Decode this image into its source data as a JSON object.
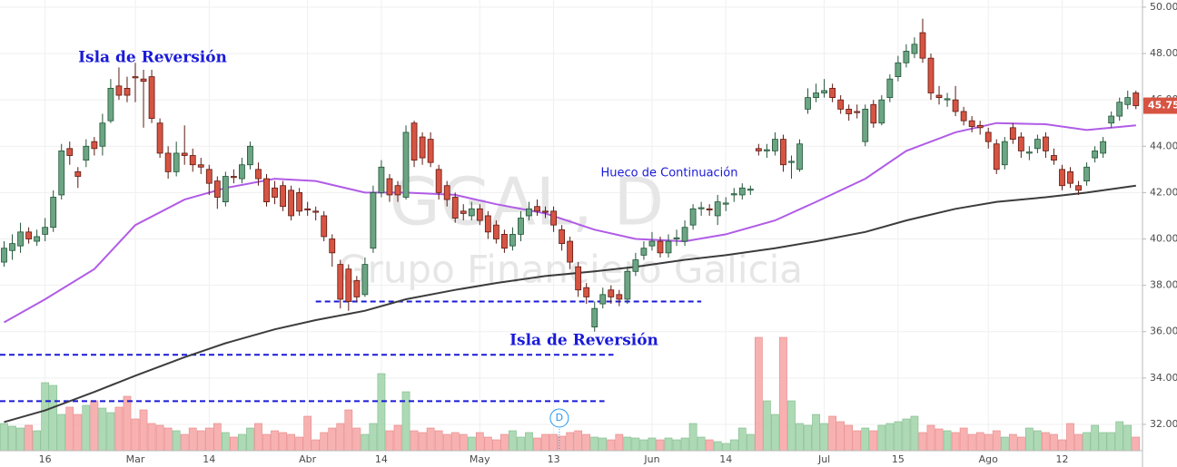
{
  "chart_data": {
    "type": "candlestick",
    "watermark": [
      "GGAL, D",
      "Grupo Financiero Galicia"
    ],
    "annotations": [
      "Isla de Reversión",
      "Isla de Reversión",
      "Hueco de Continuación"
    ],
    "event_label": "D",
    "ylim": [
      30.16,
      50.31
    ],
    "yticks": [
      {
        "value": 32,
        "label": "32.00"
      },
      {
        "value": 34,
        "label": "34.00"
      },
      {
        "value": 36,
        "label": "36.00"
      },
      {
        "value": 38,
        "label": "38.00"
      },
      {
        "value": 40,
        "label": "40.00"
      },
      {
        "value": 42,
        "label": "42.00"
      },
      {
        "value": 44,
        "label": "44.00"
      },
      {
        "value": 46,
        "label": "46.00"
      },
      {
        "value": 48,
        "label": "48.00"
      },
      {
        "value": 50,
        "label": "50.00"
      }
    ],
    "xlim": [
      -0.5,
      138.8
    ],
    "xticks": [
      {
        "value": 5,
        "label": "16"
      },
      {
        "value": 16,
        "label": "Mar"
      },
      {
        "value": 25,
        "label": "14"
      },
      {
        "value": 37,
        "label": "Abr"
      },
      {
        "value": 46,
        "label": "14"
      },
      {
        "value": 58,
        "label": "May"
      },
      {
        "value": 67,
        "label": "13"
      },
      {
        "value": 79,
        "label": "Jun"
      },
      {
        "value": 88,
        "label": "14"
      },
      {
        "value": 100,
        "label": "Jul"
      },
      {
        "value": 109,
        "label": "15"
      },
      {
        "value": 120,
        "label": "Ago"
      },
      {
        "value": 129,
        "label": "12"
      }
    ],
    "grid": true,
    "up_color": "#6ba583",
    "down_color": "#d75442",
    "level_color": "#1a1ad8",
    "levels": [
      37.3,
      35.0,
      33.0
    ],
    "open": [
      39.0,
      39.5,
      39.7,
      40.3,
      39.9,
      40.2,
      40.5,
      41.9,
      43.9,
      42.9,
      43.4,
      44.2,
      44.0,
      45.1,
      46.6,
      46.5,
      47.0,
      46.9,
      47.0,
      45.0,
      43.7,
      42.9,
      43.7,
      43.6,
      43.2,
      43.0,
      42.5,
      41.6,
      42.7,
      42.6,
      43.2,
      43.0,
      42.6,
      42.2,
      42.3,
      42.1,
      42.0,
      41.3,
      41.2,
      41.0,
      40.0,
      38.9,
      38.7,
      38.2,
      37.6,
      39.6,
      42.0,
      42.6,
      42.3,
      41.8,
      45.0,
      44.4,
      44.3,
      43.0,
      42.3,
      41.8,
      41.2,
      41.0,
      41.3,
      41.0,
      40.6,
      40.2,
      39.7,
      40.2,
      41.0,
      41.4,
      41.2,
      41.2,
      40.4,
      39.9,
      38.8,
      37.9,
      36.2,
      37.2,
      37.8,
      37.6,
      37.4,
      38.6,
      39.3,
      39.7,
      39.9,
      39.4,
      40.0,
      39.9,
      40.6,
      41.3,
      41.3,
      41.0,
      41.5,
      41.9,
      41.9,
      42.1,
      43.9,
      43.8,
      43.8,
      44.3,
      43.3,
      43.0,
      45.6,
      46.1,
      46.3,
      46.5,
      46.0,
      45.6,
      45.5,
      44.2,
      45.8,
      45.0,
      46.1,
      47.0,
      47.6,
      48.0,
      48.9,
      47.8,
      46.2,
      46.0,
      46.0,
      45.5,
      45.1,
      44.9,
      44.6,
      44.1,
      43.2,
      44.8,
      44.4,
      43.7,
      43.9,
      44.4,
      43.6,
      43.0,
      42.9,
      42.3,
      42.5,
      43.5,
      43.7,
      45.0,
      45.3,
      45.8,
      46.3
    ],
    "high": [
      39.9,
      40.2,
      40.7,
      40.5,
      40.4,
      40.9,
      42.1,
      44.1,
      44.2,
      43.1,
      44.3,
      44.4,
      45.4,
      46.9,
      47.4,
      47.0,
      47.6,
      47.3,
      47.3,
      45.2,
      44.0,
      44.2,
      44.9,
      43.9,
      43.5,
      43.2,
      42.7,
      42.9,
      43.0,
      43.5,
      44.2,
      43.3,
      42.8,
      42.5,
      42.5,
      42.3,
      42.2,
      41.6,
      41.4,
      41.2,
      40.2,
      39.1,
      38.9,
      38.4,
      39.2,
      42.3,
      43.4,
      42.8,
      42.5,
      44.9,
      45.1,
      44.6,
      44.6,
      43.2,
      42.5,
      42.0,
      41.5,
      41.6,
      41.5,
      41.2,
      40.8,
      40.4,
      40.5,
      41.2,
      41.6,
      41.7,
      41.4,
      41.4,
      40.6,
      40.1,
      39.0,
      38.1,
      37.3,
      37.9,
      38.0,
      37.8,
      38.8,
      39.4,
      39.9,
      40.3,
      40.1,
      40.2,
      40.4,
      40.8,
      41.5,
      41.6,
      41.5,
      41.9,
      41.8,
      42.2,
      42.4,
      42.3,
      44.1,
      44.1,
      44.6,
      44.5,
      43.6,
      44.3,
      46.5,
      46.7,
      46.9,
      46.7,
      46.2,
      45.8,
      45.8,
      45.8,
      46.0,
      46.2,
      47.1,
      47.9,
      48.4,
      48.7,
      49.5,
      48.0,
      46.6,
      46.3,
      46.6,
      45.7,
      45.3,
      45.1,
      44.8,
      44.3,
      44.4,
      45.0,
      44.6,
      44.0,
      44.5,
      44.6,
      43.9,
      43.2,
      43.1,
      42.5,
      43.3,
      44.0,
      44.4,
      45.5,
      46.1,
      46.4,
      46.4
    ],
    "low": [
      38.8,
      39.1,
      39.4,
      39.8,
      39.7,
      39.9,
      40.3,
      41.7,
      43.2,
      42.2,
      43.1,
      43.6,
      43.6,
      45.0,
      46.0,
      45.9,
      45.9,
      44.8,
      45.0,
      43.5,
      42.6,
      42.7,
      43.2,
      42.9,
      42.8,
      41.9,
      41.3,
      41.4,
      42.4,
      42.4,
      43.0,
      42.3,
      41.4,
      41.5,
      41.2,
      40.8,
      41.0,
      41.0,
      40.8,
      39.9,
      38.8,
      37.0,
      36.9,
      37.3,
      37.5,
      39.4,
      41.8,
      41.6,
      41.6,
      41.7,
      43.1,
      43.2,
      43.1,
      41.7,
      41.4,
      40.7,
      40.8,
      40.8,
      40.6,
      40.0,
      39.8,
      39.4,
      39.5,
      39.9,
      40.8,
      41.0,
      40.9,
      40.3,
      39.5,
      38.7,
      37.5,
      37.2,
      36.0,
      37.0,
      37.2,
      37.1,
      37.2,
      38.4,
      39.1,
      39.5,
      39.2,
      39.2,
      39.7,
      39.7,
      40.4,
      41.0,
      41.0,
      40.6,
      41.2,
      41.6,
      41.7,
      41.9,
      43.6,
      43.5,
      43.6,
      42.9,
      42.6,
      42.9,
      45.4,
      45.9,
      46.1,
      45.9,
      45.4,
      45.1,
      45.2,
      44.0,
      44.8,
      44.9,
      45.9,
      46.8,
      47.4,
      47.8,
      47.6,
      46.0,
      45.8,
      45.7,
      45.3,
      44.9,
      44.6,
      44.5,
      43.9,
      42.8,
      43.0,
      44.1,
      43.5,
      43.4,
      43.7,
      43.5,
      43.2,
      42.1,
      42.2,
      41.9,
      42.3,
      43.3,
      43.5,
      44.8,
      45.1,
      45.6,
      45.6
    ],
    "close": [
      39.6,
      39.8,
      40.3,
      40.0,
      40.1,
      40.5,
      41.8,
      43.8,
      43.6,
      42.7,
      44.0,
      43.9,
      45.0,
      46.5,
      46.2,
      46.2,
      46.95,
      46.8,
      45.2,
      43.7,
      42.9,
      43.7,
      43.6,
      43.2,
      43.1,
      42.4,
      41.8,
      42.7,
      42.65,
      43.2,
      44.0,
      42.6,
      41.6,
      41.8,
      41.4,
      41.0,
      41.2,
      41.25,
      41.15,
      40.1,
      39.4,
      37.4,
      37.3,
      37.5,
      38.9,
      42.0,
      43.1,
      41.9,
      41.9,
      44.6,
      43.4,
      43.5,
      43.3,
      42.0,
      41.7,
      40.9,
      41.1,
      41.3,
      40.8,
      40.3,
      40.0,
      39.6,
      40.2,
      40.9,
      41.3,
      41.2,
      41.15,
      40.6,
      39.8,
      39.0,
      37.8,
      37.5,
      37.0,
      37.6,
      37.5,
      37.4,
      38.6,
      39.1,
      39.6,
      39.9,
      39.4,
      39.9,
      40.05,
      40.5,
      41.3,
      41.35,
      41.25,
      41.6,
      41.55,
      41.95,
      42.2,
      42.15,
      43.8,
      43.85,
      44.3,
      43.2,
      43.35,
      44.1,
      46.1,
      46.3,
      46.4,
      46.1,
      45.6,
      45.4,
      45.45,
      45.6,
      45.0,
      46.0,
      46.9,
      47.6,
      48.1,
      48.4,
      47.8,
      46.3,
      46.1,
      46.05,
      45.5,
      45.1,
      44.85,
      44.8,
      44.2,
      43.0,
      44.2,
      44.3,
      43.8,
      43.75,
      44.3,
      43.8,
      43.4,
      42.3,
      42.4,
      42.1,
      43.1,
      43.8,
      44.2,
      45.3,
      45.9,
      46.1,
      45.75
    ],
    "volume": [
      30,
      27,
      25,
      28,
      22,
      75,
      72,
      40,
      48,
      40,
      50,
      55,
      47,
      42,
      48,
      60,
      35,
      45,
      30,
      28,
      25,
      22,
      18,
      25,
      22,
      25,
      30,
      20,
      15,
      18,
      25,
      30,
      18,
      22,
      20,
      18,
      15,
      38,
      12,
      20,
      25,
      30,
      45,
      25,
      18,
      30,
      85,
      22,
      28,
      65,
      22,
      20,
      25,
      22,
      18,
      20,
      18,
      15,
      20,
      15,
      12,
      18,
      22,
      15,
      20,
      14,
      18,
      18,
      16,
      20,
      22,
      18,
      15,
      14,
      12,
      18,
      15,
      14,
      12,
      14,
      12,
      14,
      12,
      14,
      30,
      15,
      12,
      10,
      8,
      12,
      25,
      18,
      125,
      55,
      40,
      125,
      55,
      30,
      28,
      40,
      30,
      38,
      32,
      28,
      22,
      25,
      22,
      28,
      30,
      32,
      35,
      38,
      20,
      28,
      24,
      22,
      20,
      25,
      18,
      20,
      18,
      22,
      15,
      18,
      15,
      25,
      22,
      20,
      18,
      12,
      30,
      18,
      20,
      28,
      20,
      20,
      32,
      28,
      15
    ],
    "series": [
      {
        "color": "#b05ce6",
        "x": [
          0,
          5,
          11,
          16,
          22,
          27,
          33,
          38,
          44,
          49,
          55,
          60,
          66,
          72,
          77,
          83,
          88,
          94,
          99,
          105,
          110,
          116,
          121,
          127,
          132,
          138
        ],
        "values": [
          36.4,
          37.4,
          38.7,
          40.6,
          41.7,
          42.2,
          42.6,
          42.5,
          42.0,
          42.0,
          41.9,
          41.5,
          41.1,
          40.4,
          40.0,
          39.9,
          40.2,
          40.8,
          41.6,
          42.6,
          43.8,
          44.6,
          45.0,
          44.95,
          44.7,
          44.9
        ]
      },
      {
        "color": "#3c3c3c",
        "x": [
          0,
          5,
          11,
          16,
          22,
          27,
          33,
          38,
          44,
          49,
          55,
          60,
          66,
          72,
          77,
          83,
          88,
          94,
          99,
          105,
          110,
          116,
          121,
          127,
          132,
          138
        ],
        "values": [
          32.1,
          32.6,
          33.4,
          34.1,
          34.9,
          35.5,
          36.1,
          36.5,
          36.9,
          37.4,
          37.8,
          38.1,
          38.4,
          38.6,
          38.8,
          39.1,
          39.3,
          39.6,
          39.9,
          40.3,
          40.8,
          41.3,
          41.6,
          41.8,
          42.0,
          42.3
        ]
      }
    ]
  }
}
